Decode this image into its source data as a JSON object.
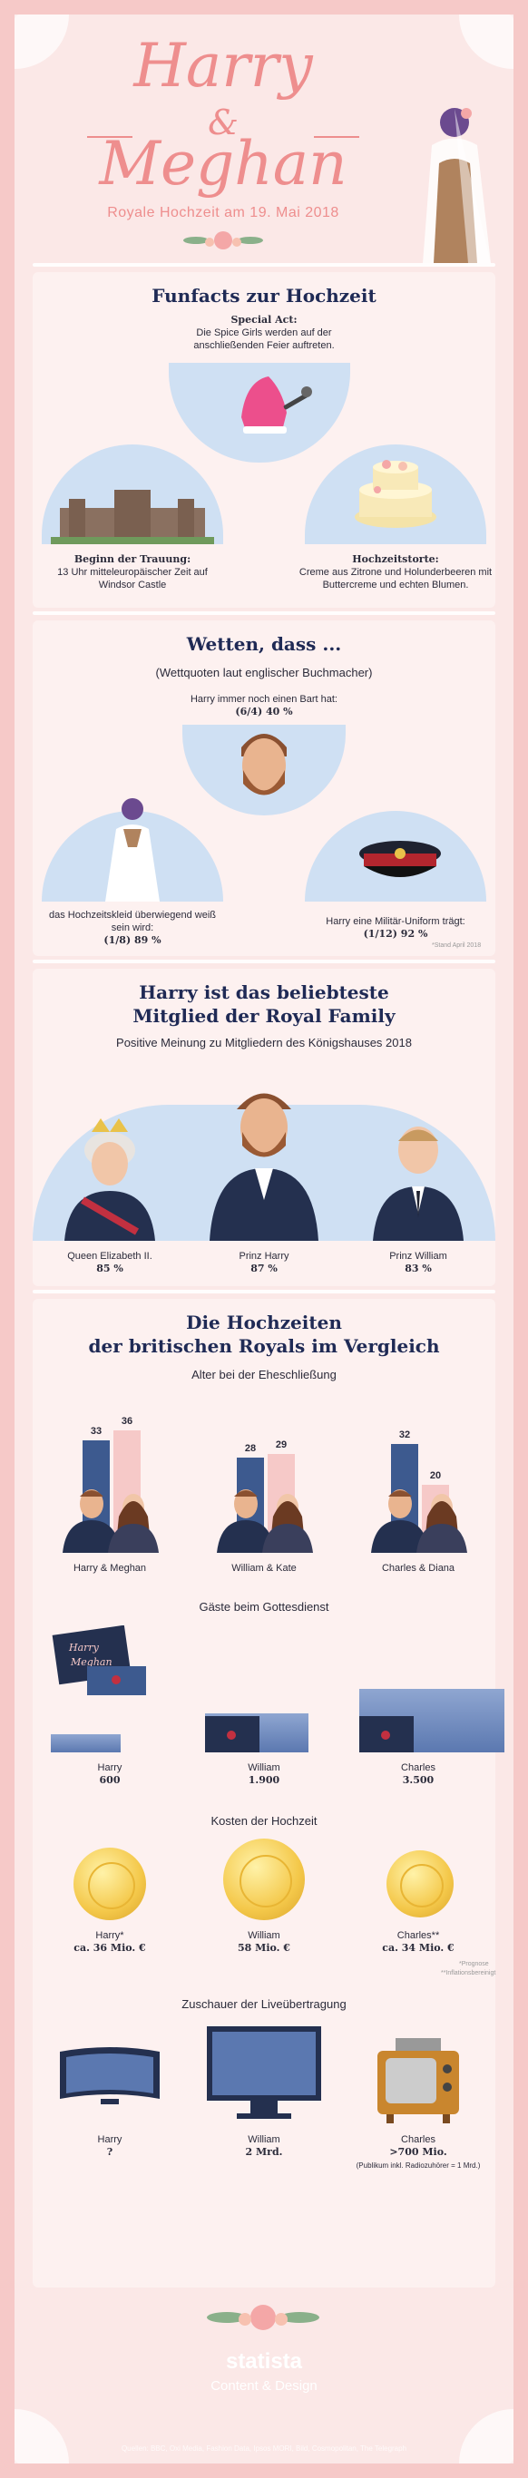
{
  "hero": {
    "title_line1": "Harry",
    "ampersand": "&",
    "title_line2": "Meghan",
    "subtitle": "Royale Hochzeit am 19. Mai 2018"
  },
  "funfacts": {
    "title": "Funfacts zur Hochzeit",
    "special": {
      "label": "Special Act:",
      "text": "Die Spice Girls werden auf der anschließenden Feier auftreten."
    },
    "beginn": {
      "label": "Beginn der Trauung:",
      "text": "13 Uhr mitteleuropäischer Zeit auf Windsor Castle"
    },
    "torte": {
      "label": "Hochzeitstorte:",
      "text": "Creme aus Zitrone und Holunderbeeren mit Buttercreme und echten Blumen."
    }
  },
  "wetten": {
    "title": "Wetten, dass ...",
    "subtitle": "(Wettquoten laut englischer Buchmacher)",
    "bart": {
      "text": "Harry immer noch einen Bart hat:",
      "value": "(6/4) 40 %"
    },
    "kleid": {
      "text": "das Hochzeitskleid überwiegend weiß sein wird:",
      "value": "(1/8) 89 %"
    },
    "uniform": {
      "text": "Harry eine Militär-Uniform trägt:",
      "value": "(1/12)  92 %"
    },
    "source": "*Stand April 2018"
  },
  "beliebt": {
    "title_line1": "Harry ist das beliebteste",
    "title_line2": "Mitglied der Royal Family",
    "subtitle": "Positive Meinung zu Mitgliedern des Königshauses 2018",
    "people": [
      {
        "name": "Queen Elizabeth II.",
        "value": "85 %"
      },
      {
        "name": "Prinz Harry",
        "value": "87 %"
      },
      {
        "name": "Prinz William",
        "value": "83 %"
      }
    ]
  },
  "vergleich": {
    "title_line1": "Die Hochzeiten",
    "title_line2": "der britischen Royals im Vergleich",
    "alter_title": "Alter bei der Eheschließung",
    "couples": [
      {
        "name": "Harry & Meghan",
        "male": 33,
        "female": 36
      },
      {
        "name": "William & Kate",
        "male": 28,
        "female": 29
      },
      {
        "name": "Charles & Diana",
        "male": 32,
        "female": 20
      }
    ],
    "gaeste_title": "Gäste beim Gottesdienst",
    "guests": [
      {
        "name": "Harry",
        "value": "600",
        "num": 600
      },
      {
        "name": "William",
        "value": "1.900",
        "num": 1900
      },
      {
        "name": "Charles",
        "value": "3.500",
        "num": 3500
      }
    ],
    "invite_text_1": "Harry",
    "invite_text_2": "Meghan",
    "kosten_title": "Kosten der Hochzeit",
    "costs": [
      {
        "name": "Harry*",
        "value": "ca. 36 Mio. €"
      },
      {
        "name": "William",
        "value": "58 Mio. €"
      },
      {
        "name": "Charles**",
        "value": "ca. 34 Mio. €"
      }
    ],
    "cost_note_1": "*Prognose",
    "cost_note_2": "**Inflationsbereinigt",
    "zuschauer_title": "Zuschauer der Liveübertragung",
    "viewers": [
      {
        "name": "Harry",
        "value": "?"
      },
      {
        "name": "William",
        "value": "2 Mrd."
      },
      {
        "name": "Charles",
        "value": ">700 Mio.",
        "note": "(Publikum inkl. Radiozuhörer = 1 Mrd.)"
      }
    ]
  },
  "footer": {
    "logo": "statista",
    "logo_sub": "Content & Design",
    "sources": "Quellen: BBC, Oxi Media, Fashion Data, Ipsos MORI, Bild, Cosmopolitan, The Telegraph"
  },
  "colors": {
    "pink": "#ee8e8e",
    "navy": "#1f2a55",
    "bar_male": "#3d5a8f",
    "bar_female": "#f6c9c8",
    "blob": "#cfe0f3"
  }
}
